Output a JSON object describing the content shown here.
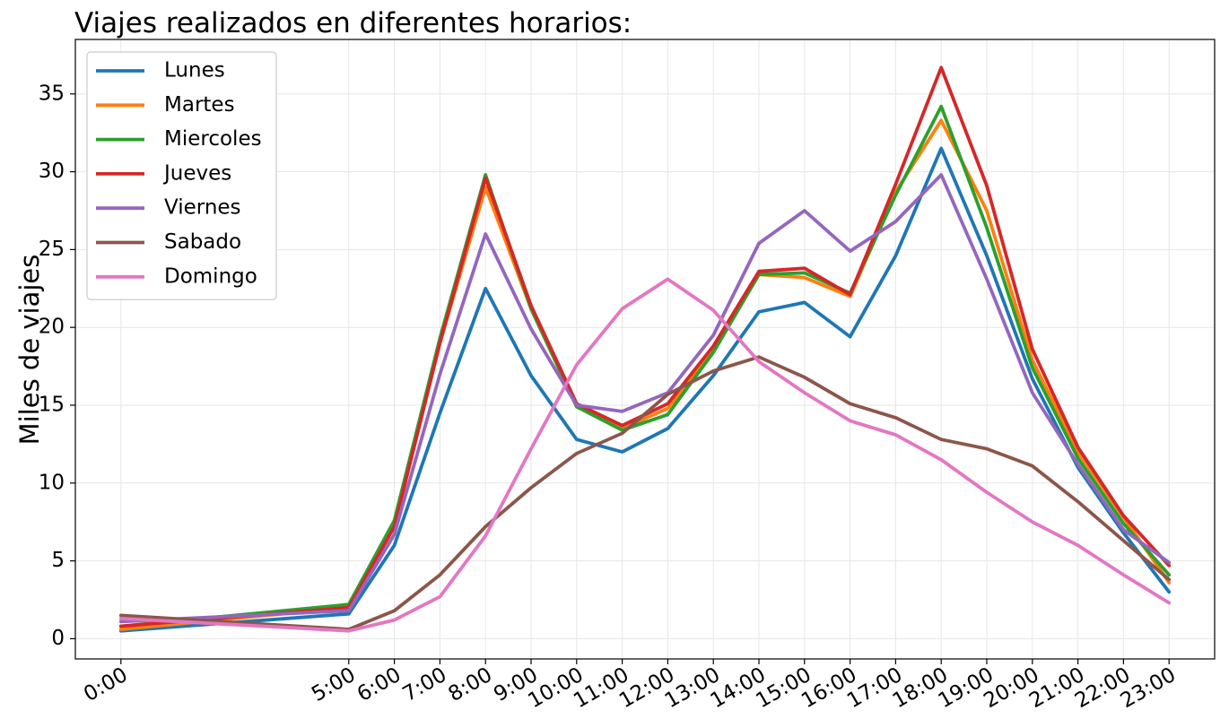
{
  "chart_data": {
    "type": "line",
    "title": "Viajes realizados en diferentes horarios:",
    "xlabel": "",
    "ylabel": "Miles de viajes",
    "x": [
      0,
      5,
      6,
      7,
      8,
      9,
      10,
      11,
      12,
      13,
      14,
      15,
      16,
      17,
      18,
      19,
      20,
      21,
      22,
      23
    ],
    "xlim": [
      -1,
      24
    ],
    "ylim": [
      -1.3,
      38.5
    ],
    "grid": true,
    "legend_position": "top-left",
    "x_ticks": [
      {
        "value": 0,
        "label": "0:00"
      },
      {
        "value": 5,
        "label": "5:00"
      },
      {
        "value": 6,
        "label": "6:00"
      },
      {
        "value": 7,
        "label": "7:00"
      },
      {
        "value": 8,
        "label": "8:00"
      },
      {
        "value": 9,
        "label": "9:00"
      },
      {
        "value": 10,
        "label": "10:00"
      },
      {
        "value": 11,
        "label": "11:00"
      },
      {
        "value": 12,
        "label": "12:00"
      },
      {
        "value": 13,
        "label": "13:00"
      },
      {
        "value": 14,
        "label": "14:00"
      },
      {
        "value": 15,
        "label": "15:00"
      },
      {
        "value": 16,
        "label": "16:00"
      },
      {
        "value": 17,
        "label": "17:00"
      },
      {
        "value": 18,
        "label": "18:00"
      },
      {
        "value": 19,
        "label": "19:00"
      },
      {
        "value": 20,
        "label": "20:00"
      },
      {
        "value": 21,
        "label": "21:00"
      },
      {
        "value": 22,
        "label": "22:00"
      },
      {
        "value": 23,
        "label": "23:00"
      }
    ],
    "y_ticks": [
      {
        "value": 0,
        "label": "0"
      },
      {
        "value": 5,
        "label": "5"
      },
      {
        "value": 10,
        "label": "10"
      },
      {
        "value": 15,
        "label": "15"
      },
      {
        "value": 20,
        "label": "20"
      },
      {
        "value": 25,
        "label": "25"
      },
      {
        "value": 30,
        "label": "30"
      },
      {
        "value": 35,
        "label": "35"
      }
    ],
    "series": [
      {
        "name": "Lunes",
        "color": "#1f77b4",
        "values": [
          0.5,
          1.6,
          6.0,
          14.5,
          22.5,
          16.9,
          12.8,
          12.0,
          13.5,
          16.9,
          21.0,
          21.6,
          19.4,
          24.6,
          31.5,
          24.6,
          16.7,
          11.0,
          6.8,
          3.0
        ]
      },
      {
        "name": "Martes",
        "color": "#ff7f0e",
        "values": [
          0.6,
          2.0,
          7.4,
          19.0,
          29.0,
          21.2,
          14.9,
          13.5,
          14.8,
          18.5,
          23.4,
          23.2,
          22.0,
          28.7,
          33.3,
          27.5,
          17.9,
          12.0,
          7.8,
          3.6
        ]
      },
      {
        "name": "Miercoles",
        "color": "#2ca02c",
        "values": [
          0.8,
          2.2,
          7.6,
          19.3,
          29.8,
          21.2,
          14.9,
          13.4,
          14.4,
          18.4,
          23.4,
          23.5,
          22.2,
          28.5,
          34.2,
          26.4,
          17.4,
          11.6,
          7.4,
          4.1
        ]
      },
      {
        "name": "Jueves",
        "color": "#d62728",
        "values": [
          0.8,
          2.0,
          7.2,
          19.0,
          29.6,
          21.4,
          15.1,
          13.7,
          15.1,
          18.8,
          23.6,
          23.8,
          22.1,
          29.2,
          36.7,
          29.1,
          18.6,
          12.3,
          7.9,
          4.7
        ]
      },
      {
        "name": "Viernes",
        "color": "#9467bd",
        "values": [
          1.1,
          1.8,
          6.7,
          17.0,
          26.0,
          19.9,
          15.0,
          14.6,
          15.8,
          19.5,
          25.4,
          27.5,
          24.9,
          26.8,
          29.8,
          23.1,
          15.8,
          11.2,
          7.0,
          4.9
        ]
      },
      {
        "name": "Sabado",
        "color": "#8c564b",
        "values": [
          1.5,
          0.6,
          1.8,
          4.1,
          7.2,
          9.7,
          11.9,
          13.2,
          15.7,
          17.2,
          18.1,
          16.8,
          15.1,
          14.2,
          12.8,
          12.2,
          11.1,
          8.8,
          6.3,
          3.8
        ]
      },
      {
        "name": "Domingo",
        "color": "#e377c2",
        "values": [
          1.3,
          0.5,
          1.2,
          2.7,
          6.6,
          12.2,
          17.6,
          21.2,
          23.1,
          21.1,
          17.8,
          15.8,
          14.0,
          13.1,
          11.5,
          9.4,
          7.5,
          6.0,
          4.1,
          2.3
        ]
      }
    ]
  }
}
